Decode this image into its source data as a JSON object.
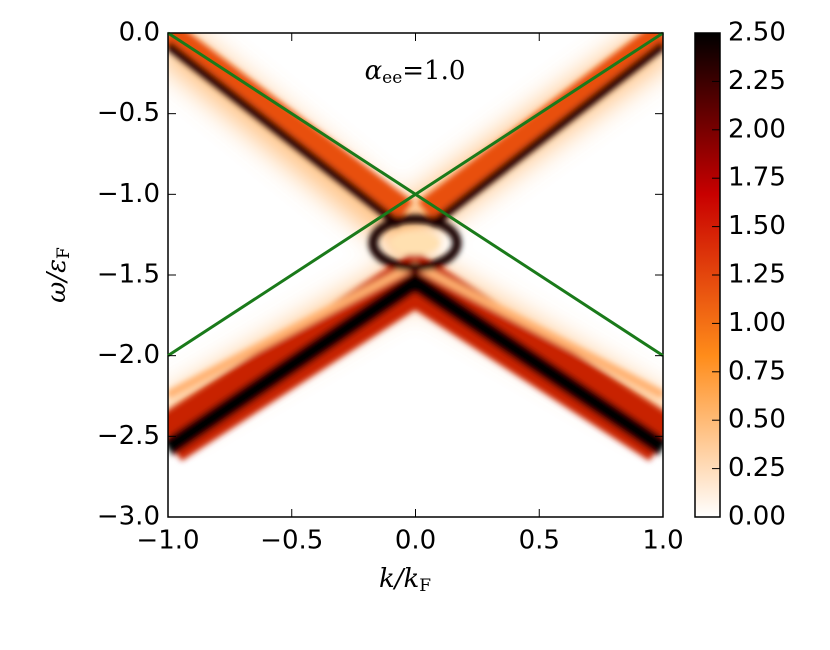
{
  "chart_data": {
    "type": "heatmap",
    "annotation": {
      "symbol": "α",
      "subscript": "ee",
      "rest": "=1.0"
    },
    "xlabel": {
      "main": "k/k",
      "subscript": "F"
    },
    "ylabel": {
      "main": "ω/ε",
      "subscript": "F"
    },
    "xlim": [
      -1,
      1
    ],
    "ylim": [
      -3,
      0
    ],
    "xticks": [
      {
        "value": -1,
        "label": "−1.0"
      },
      {
        "value": -0.5,
        "label": "−0.5"
      },
      {
        "value": 0,
        "label": "0.0"
      },
      {
        "value": 0.5,
        "label": "0.5"
      },
      {
        "value": 1,
        "label": "1.0"
      }
    ],
    "yticks": [
      {
        "value": 0,
        "label": "0.0"
      },
      {
        "value": -0.5,
        "label": "−0.5"
      },
      {
        "value": -1,
        "label": "−1.0"
      },
      {
        "value": -1.5,
        "label": "−1.5"
      },
      {
        "value": -2,
        "label": "−2.0"
      },
      {
        "value": -2.5,
        "label": "−2.5"
      },
      {
        "value": -3,
        "label": "−3.0"
      }
    ],
    "colorbar": {
      "lim": [
        0,
        2.5
      ],
      "colors": [
        "#ffffff",
        "#ff8c1a",
        "#c80000",
        "#000000"
      ],
      "ticks": [
        {
          "value": 0,
          "label": "0.00"
        },
        {
          "value": 0.25,
          "label": "0.25"
        },
        {
          "value": 0.5,
          "label": "0.50"
        },
        {
          "value": 0.75,
          "label": "0.75"
        },
        {
          "value": 1,
          "label": "1.00"
        },
        {
          "value": 1.25,
          "label": "1.25"
        },
        {
          "value": 1.5,
          "label": "1.50"
        },
        {
          "value": 1.75,
          "label": "1.75"
        },
        {
          "value": 2,
          "label": "2.00"
        },
        {
          "value": 2.25,
          "label": "2.25"
        },
        {
          "value": 2.5,
          "label": "2.50"
        }
      ]
    },
    "series": [
      {
        "color": "#1a7a1a",
        "x": [
          -1,
          1
        ],
        "values": [
          0,
          -2
        ]
      },
      {
        "color": "#1a7a1a",
        "x": [
          -1,
          1
        ],
        "values": [
          -2,
          0
        ]
      }
    ]
  }
}
